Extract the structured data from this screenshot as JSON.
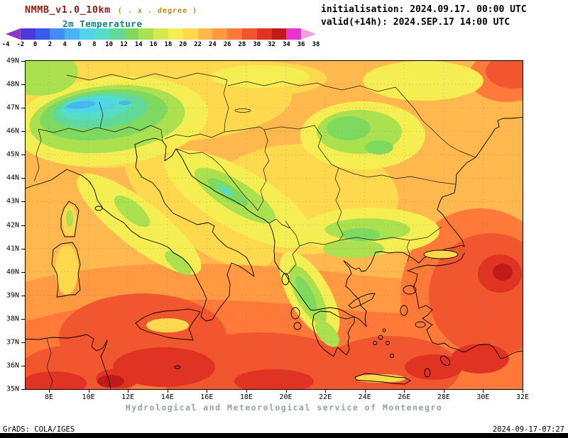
{
  "header": {
    "model_title": "NMMB_v1.0_10km",
    "model_note": "( . x . degree )",
    "variable_label": "2m Temperature",
    "init_line": "initialisation: 2024.09.17. 00:00 UTC",
    "valid_line": "valid(+14h): 2024.SEP.17 14:00 UTC"
  },
  "colorbar": {
    "tick_labels": [
      "-4",
      "-2",
      "0",
      "2",
      "4",
      "6",
      "8",
      "10",
      "12",
      "14",
      "16",
      "18",
      "20",
      "22",
      "24",
      "26",
      "28",
      "30",
      "32",
      "34",
      "36",
      "38"
    ],
    "cell_colors": [
      "#8a37c8",
      "#4a3bd8",
      "#3a5be8",
      "#3f8ef0",
      "#47b4f0",
      "#4fd4e8",
      "#56ddc8",
      "#62d998",
      "#7fd95e",
      "#abe04f",
      "#d6e84f",
      "#f5ee52",
      "#ffd94d",
      "#ffb84d",
      "#ff9a42",
      "#ff7a38",
      "#f2562e",
      "#e03324",
      "#c01a1a",
      "#e833cc",
      "#f2a0dc"
    ]
  },
  "map": {
    "lat_labels": [
      "49N",
      "48N",
      "47N",
      "46N",
      "45N",
      "44N",
      "43N",
      "42N",
      "41N",
      "40N",
      "39N",
      "38N",
      "37N",
      "36N",
      "35N"
    ],
    "lon_labels": [
      "8E",
      "10E",
      "12E",
      "14E",
      "16E",
      "18E",
      "20E",
      "22E",
      "24E",
      "26E",
      "28E",
      "30E",
      "32E"
    ]
  },
  "footer": {
    "service_line": "Hydrological and Meteorological service of Montenegro",
    "grads_credit": "GrADS: COLA/IGES",
    "generated": "2024-09-17-07:27"
  },
  "colors": {
    "title_color": "#8f2016",
    "note_color": "#c8860b",
    "variable_color": "#0c8585",
    "service_color": "#98a0a0",
    "base_field_color": "#ffb84d"
  }
}
